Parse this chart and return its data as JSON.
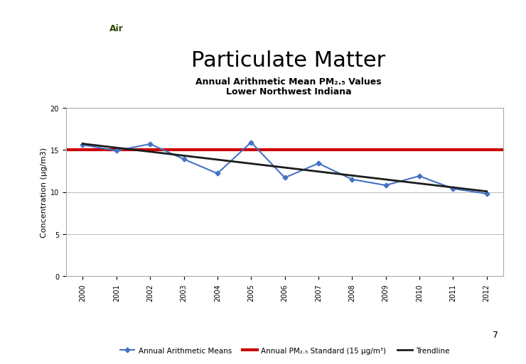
{
  "title_main": "Particulate Matter",
  "subtitle_line1": "Annual Arithmetic Mean PM₂.₅ Values",
  "subtitle_line2": "Lower Northwest Indiana",
  "years": [
    2000,
    2001,
    2002,
    2003,
    2004,
    2005,
    2006,
    2007,
    2008,
    2009,
    2010,
    2011,
    2012
  ],
  "pm_values": [
    15.6,
    14.9,
    15.7,
    13.9,
    12.2,
    15.9,
    11.7,
    13.4,
    11.5,
    10.8,
    11.9,
    10.4,
    9.8
  ],
  "standard_value": 15.0,
  "ylim": [
    0,
    20
  ],
  "yticks": [
    0,
    5,
    10,
    15,
    20
  ],
  "ylabel": "Concentration (µg/m3)",
  "line_color": "#4472C4",
  "standard_color": "#CC0000",
  "trendline_color": "#1C1C1C",
  "plot_bg_color": "#FFFFFF",
  "grid_color": "#BBBBBB",
  "legend_label_blue": "Annual Arithmetic Means",
  "legend_label_red": "Annual PM₂.₅ Standard (15 µg/m³)",
  "legend_label_black": "Trendline",
  "slide_bg_color": "#FFFFFF",
  "header_purple": "#8080A8",
  "header_green": "#9DC45F",
  "title_fontsize": 22,
  "subtitle_fontsize": 9,
  "axis_label_fontsize": 8,
  "tick_fontsize": 7,
  "legend_fontsize": 7.5
}
